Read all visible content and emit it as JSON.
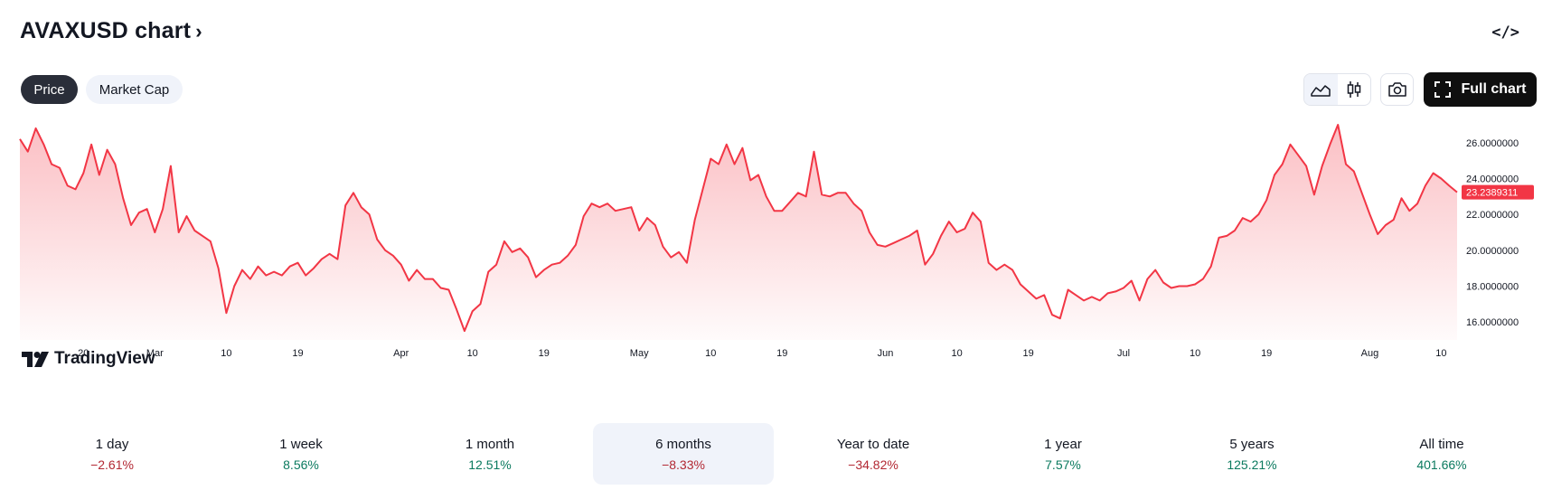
{
  "header": {
    "title": "AVAXUSD chart",
    "title_chevron": "›",
    "embed_label": "</>",
    "embed_icon": "embed-code-icon"
  },
  "tabs": [
    {
      "label": "Price",
      "active": true
    },
    {
      "label": "Market Cap",
      "active": false
    }
  ],
  "toolbar": {
    "chart_types": [
      "area-chart-icon",
      "candles-chart-icon"
    ],
    "selected_type": "area",
    "snapshot_icon": "camera-icon",
    "full_chart_label": "Full chart",
    "full_chart_icon": "fullscreen-icon"
  },
  "branding": {
    "logo_text": "TradingView"
  },
  "colors": {
    "line": "#f23645",
    "area_top": "#f23645",
    "price_label_bg": "#f23645",
    "negative": "#b22833",
    "positive": "#0b7a5f"
  },
  "chart_data": {
    "type": "area",
    "series": [
      {
        "x": [
          "Feb 12",
          "Feb 13",
          "Feb 14",
          "Feb 15",
          "Feb 16",
          "Feb 17",
          "Feb 18",
          "Feb 19",
          "Feb 20",
          "Feb 21",
          "Feb 22",
          "Feb 23",
          "Feb 24",
          "Feb 25",
          "Feb 26",
          "Feb 27",
          "Feb 28",
          "Mar 1",
          "Mar 2",
          "Mar 3",
          "Mar 4",
          "Mar 5",
          "Mar 6",
          "Mar 7",
          "Mar 8",
          "Mar 9",
          "Mar 10",
          "Mar 11",
          "Mar 12",
          "Mar 13",
          "Mar 14",
          "Mar 15",
          "Mar 16",
          "Mar 17",
          "Mar 18",
          "Mar 19",
          "Mar 20",
          "Mar 21",
          "Mar 22",
          "Mar 23",
          "Mar 24",
          "Mar 25",
          "Mar 26",
          "Mar 27",
          "Mar 28",
          "Mar 29",
          "Mar 30",
          "Mar 31",
          "Apr 1",
          "Apr 2",
          "Apr 3",
          "Apr 4",
          "Apr 5",
          "Apr 6",
          "Apr 7",
          "Apr 8",
          "Apr 9",
          "Apr 10",
          "Apr 11",
          "Apr 12",
          "Apr 13",
          "Apr 14",
          "Apr 15",
          "Apr 16",
          "Apr 17",
          "Apr 18",
          "Apr 19",
          "Apr 20",
          "Apr 21",
          "Apr 22",
          "Apr 23",
          "Apr 24",
          "Apr 25",
          "Apr 26",
          "Apr 27",
          "Apr 28",
          "Apr 29",
          "Apr 30",
          "May 1",
          "May 2",
          "May 3",
          "May 4",
          "May 5",
          "May 6",
          "May 7",
          "May 8",
          "May 9",
          "May 10",
          "May 11",
          "May 12",
          "May 13",
          "May 14",
          "May 15",
          "May 16",
          "May 17",
          "May 18",
          "May 19",
          "May 20",
          "May 21",
          "May 22",
          "May 23",
          "May 24",
          "May 25",
          "May 26",
          "May 27",
          "May 28",
          "May 29",
          "May 30",
          "May 31",
          "Jun 1",
          "Jun 2",
          "Jun 3",
          "Jun 4",
          "Jun 5",
          "Jun 6",
          "Jun 7",
          "Jun 8",
          "Jun 9",
          "Jun 10",
          "Jun 11",
          "Jun 12",
          "Jun 13",
          "Jun 14",
          "Jun 15",
          "Jun 16",
          "Jun 17",
          "Jun 18",
          "Jun 19",
          "Jun 20",
          "Jun 21",
          "Jun 22",
          "Jun 23",
          "Jun 24",
          "Jun 25",
          "Jun 26",
          "Jun 27",
          "Jun 28",
          "Jun 29",
          "Jun 30",
          "Jul 1",
          "Jul 2",
          "Jul 3",
          "Jul 4",
          "Jul 5",
          "Jul 6",
          "Jul 7",
          "Jul 8",
          "Jul 9",
          "Jul 10",
          "Jul 11",
          "Jul 12",
          "Jul 13",
          "Jul 14",
          "Jul 15",
          "Jul 16",
          "Jul 17",
          "Jul 18",
          "Jul 19",
          "Jul 20",
          "Jul 21",
          "Jul 22",
          "Jul 23",
          "Jul 24",
          "Jul 25",
          "Jul 26",
          "Jul 27",
          "Jul 28",
          "Jul 29",
          "Jul 30",
          "Jul 31",
          "Aug 1",
          "Aug 2",
          "Aug 3",
          "Aug 4",
          "Aug 5",
          "Aug 6",
          "Aug 7",
          "Aug 8",
          "Aug 9",
          "Aug 10",
          "Aug 11",
          "Aug 12"
        ],
        "values": [
          26.2,
          25.5,
          26.8,
          25.9,
          24.8,
          24.6,
          23.6,
          23.4,
          24.3,
          25.9,
          24.2,
          25.6,
          24.8,
          22.9,
          21.4,
          22.1,
          22.3,
          21.0,
          22.3,
          24.7,
          21.0,
          21.9,
          21.1,
          20.8,
          20.5,
          19.0,
          16.5,
          18.0,
          18.9,
          18.4,
          19.1,
          18.6,
          18.8,
          18.6,
          19.1,
          19.3,
          18.6,
          19.0,
          19.5,
          19.8,
          19.5,
          22.5,
          23.2,
          22.4,
          22.0,
          20.6,
          20.0,
          19.7,
          19.2,
          18.3,
          18.9,
          18.4,
          18.4,
          17.9,
          17.8,
          16.7,
          15.5,
          16.6,
          17.0,
          18.8,
          19.2,
          20.5,
          19.9,
          20.1,
          19.6,
          18.5,
          18.9,
          19.2,
          19.3,
          19.7,
          20.3,
          21.9,
          22.6,
          22.4,
          22.6,
          22.2,
          22.3,
          22.4,
          21.1,
          21.8,
          21.4,
          20.2,
          19.6,
          19.9,
          19.3,
          21.7,
          23.4,
          25.1,
          24.8,
          25.9,
          24.8,
          25.7,
          23.9,
          24.2,
          23.0,
          22.2,
          22.2,
          22.7,
          23.2,
          23.0,
          25.5,
          23.1,
          23.0,
          23.2,
          23.2,
          22.6,
          22.2,
          21.0,
          20.3,
          20.2,
          20.4,
          20.6,
          20.8,
          21.1,
          19.2,
          19.8,
          20.8,
          21.6,
          21.0,
          21.2,
          22.1,
          21.6,
          19.3,
          18.9,
          19.2,
          18.9,
          18.1,
          17.7,
          17.3,
          17.5,
          16.4,
          16.2,
          17.8,
          17.5,
          17.2,
          17.4,
          17.2,
          17.6,
          17.7,
          17.9,
          18.3,
          17.2,
          18.4,
          18.9,
          18.2,
          17.9,
          18.0,
          18.0,
          18.1,
          18.4,
          19.1,
          20.7,
          20.8,
          21.1,
          21.8,
          21.6,
          22.0,
          22.8,
          24.2,
          24.8,
          25.9,
          25.3,
          24.7,
          23.1,
          24.7,
          25.9,
          27.0,
          24.8,
          24.4,
          23.2,
          22.0,
          20.9,
          21.4,
          21.7,
          22.9,
          22.2,
          22.6,
          23.6,
          24.3,
          24.0,
          23.6,
          23.2389
        ]
      }
    ],
    "xticks": [
      "20",
      "Mar",
      "10",
      "19",
      "Apr",
      "10",
      "19",
      "May",
      "10",
      "19",
      "Jun",
      "10",
      "19",
      "Jul",
      "10",
      "19",
      "Aug",
      "10"
    ],
    "y_ticks": [
      "16.0000000",
      "18.0000000",
      "20.0000000",
      "22.0000000",
      "24.0000000",
      "26.0000000"
    ],
    "ylim": [
      15.0,
      27.3
    ],
    "last_price_label": "23.2389311",
    "grid": false,
    "fill": "gradient"
  },
  "periods": [
    {
      "label": "1 day",
      "value": "−2.61%",
      "sign": "neg",
      "selected": false
    },
    {
      "label": "1 week",
      "value": "8.56%",
      "sign": "pos",
      "selected": false
    },
    {
      "label": "1 month",
      "value": "12.51%",
      "sign": "pos",
      "selected": false
    },
    {
      "label": "6 months",
      "value": "−8.33%",
      "sign": "neg",
      "selected": true
    },
    {
      "label": "Year to date",
      "value": "−34.82%",
      "sign": "neg",
      "selected": false
    },
    {
      "label": "1 year",
      "value": "7.57%",
      "sign": "pos",
      "selected": false
    },
    {
      "label": "5 years",
      "value": "125.21%",
      "sign": "pos",
      "selected": false
    },
    {
      "label": "All time",
      "value": "401.66%",
      "sign": "pos",
      "selected": false
    }
  ]
}
